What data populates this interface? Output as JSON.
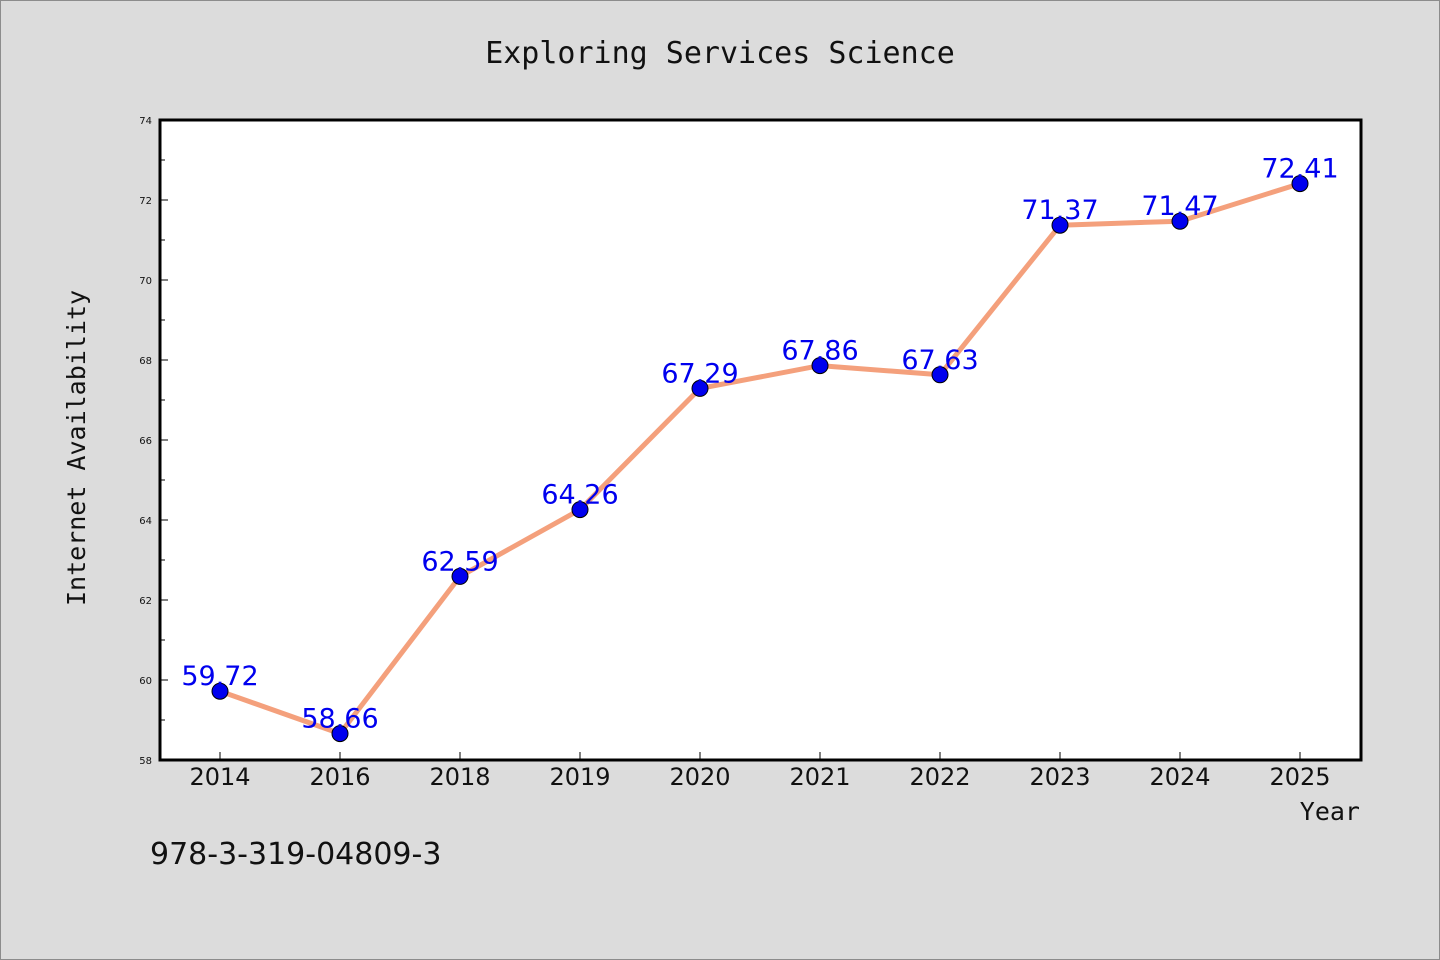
{
  "chart_data": {
    "type": "line",
    "title": "Exploring Services Science",
    "xlabel": "Year",
    "ylabel": "Internet Availability",
    "categories": [
      "2014",
      "2016",
      "2018",
      "2019",
      "2020",
      "2021",
      "2022",
      "2023",
      "2024",
      "2025"
    ],
    "series": [
      {
        "values": [
          59.72,
          58.66,
          62.59,
          64.26,
          67.29,
          67.86,
          67.63,
          71.37,
          71.47,
          72.41
        ],
        "line_color": "#f4a07c",
        "marker_color": "#0000ee"
      }
    ],
    "data_labels": [
      "59.72",
      "58.66",
      "62.59",
      "64.26",
      "67.29",
      "67.86",
      "67.63",
      "71.37",
      "71.47",
      "72.41"
    ],
    "ylim": [
      58,
      74
    ],
    "y_ticks": [
      58,
      60,
      62,
      64,
      66,
      68,
      70,
      72,
      74
    ],
    "y_minor_ticks": [
      59,
      61,
      63,
      65,
      67,
      69,
      71,
      73
    ],
    "grid": false,
    "data_label_color": "#0000ee"
  },
  "footer": {
    "isbn": "978-3-319-04809-3"
  }
}
